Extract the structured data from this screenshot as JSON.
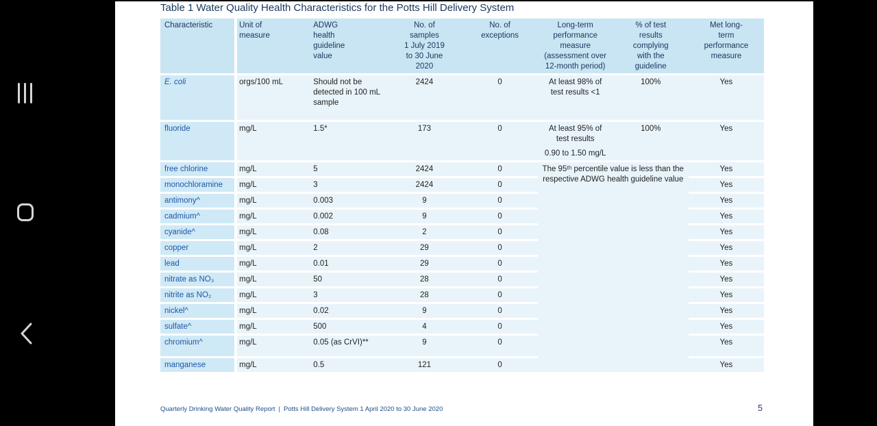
{
  "nav": {
    "recents_icon": "recent-apps",
    "home_icon": "home",
    "back_icon": "back"
  },
  "doc": {
    "title": "Table 1 Water Quality Health Characteristics for the Potts Hill Delivery System",
    "footer_left": "Quarterly Drinking Water Quality Report",
    "footer_separator": "|",
    "footer_right": "Potts Hill Delivery System 1 April 2020 to 30 June 2020",
    "page_number": "5"
  },
  "colors": {
    "header_bg": "#c9e5f3",
    "characteristic_bg": "#cfe9f6",
    "data_bg": "#e9f4fa",
    "header_text": "#17365d",
    "characteristic_text": "#2057a7",
    "data_text": "#1f1f1f",
    "nav_icon": "#d6d6d6"
  },
  "table": {
    "headers": [
      {
        "label": "Characteristic"
      },
      {
        "label": "Unit of measure"
      },
      {
        "label": "ADWG health guideline value"
      },
      {
        "label": "No. of samples",
        "sub": "1 July 2019 to 30 June 2020"
      },
      {
        "label": "No. of exceptions"
      },
      {
        "label": "Long-term performance measure (assessment over 12-month period)"
      },
      {
        "label": "% of test results complying with the guideline"
      },
      {
        "label": "Met long-term performance measure"
      }
    ],
    "merged": {
      "note": "The 95ᵗʰ percentile value is less than the respective ADWG health guideline value",
      "span_rows": 13
    },
    "rows": [
      {
        "characteristic": "E. coli",
        "italic": true,
        "unit": "orgs/100 mL",
        "guideline": "Should not be detected in 100 mL sample",
        "samples": "2424",
        "exceptions": "0",
        "longterm": [
          "At least 98% of test results <1"
        ],
        "complying": "100%",
        "met": "Yes",
        "variant": "tall"
      },
      {
        "characteristic": "fluoride",
        "unit": "mg/L",
        "guideline": "1.5*",
        "samples": "173",
        "exceptions": "0",
        "longterm": [
          "At least 95% of test results",
          "0.90 to 1.50 mg/L"
        ],
        "complying": "100%",
        "met": "Yes",
        "variant": "med"
      },
      {
        "characteristic": "free chlorine",
        "unit": "mg/L",
        "guideline": "5",
        "samples": "2424",
        "exceptions": "0",
        "met": "Yes",
        "merged_start": true,
        "variant": "reg"
      },
      {
        "characteristic": "monochloramine",
        "unit": "mg/L",
        "guideline": "3",
        "samples": "2424",
        "exceptions": "0",
        "met": "Yes",
        "variant": "reg"
      },
      {
        "characteristic": "antimony^",
        "unit": "mg/L",
        "guideline": "0.003",
        "samples": "9",
        "exceptions": "0",
        "met": "Yes",
        "variant": "reg"
      },
      {
        "characteristic": "cadmium^",
        "unit": "mg/L",
        "guideline": "0.002",
        "samples": "9",
        "exceptions": "0",
        "met": "Yes",
        "variant": "reg"
      },
      {
        "characteristic": "cyanide^",
        "unit": "mg/L",
        "guideline": "0.08",
        "samples": "2",
        "exceptions": "0",
        "met": "Yes",
        "variant": "reg"
      },
      {
        "characteristic": "copper",
        "unit": "mg/L",
        "guideline": "2",
        "samples": "29",
        "exceptions": "0",
        "met": "Yes",
        "variant": "reg"
      },
      {
        "characteristic": "lead",
        "unit": "mg/L",
        "guideline": "0.01",
        "samples": "29",
        "exceptions": "0",
        "met": "Yes",
        "variant": "reg"
      },
      {
        "characteristic": "nitrate as NO₃",
        "unit": "mg/L",
        "guideline": "50",
        "samples": "28",
        "exceptions": "0",
        "met": "Yes",
        "variant": "reg"
      },
      {
        "characteristic": "nitrite as NO₂",
        "unit": "mg/L",
        "guideline": "3",
        "samples": "28",
        "exceptions": "0",
        "met": "Yes",
        "variant": "reg"
      },
      {
        "characteristic": "nickel^",
        "unit": "mg/L",
        "guideline": "0.02",
        "samples": "9",
        "exceptions": "0",
        "met": "Yes",
        "variant": "reg"
      },
      {
        "characteristic": "sulfate^",
        "unit": "mg/L",
        "guideline": "500",
        "samples": "4",
        "exceptions": "0",
        "met": "Yes",
        "variant": "reg"
      },
      {
        "characteristic": "chromium^",
        "unit": "mg/L",
        "guideline": "0.05 (as CrVI)**",
        "samples": "9",
        "exceptions": "0",
        "met": "Yes",
        "variant": "x2"
      },
      {
        "characteristic": "manganese",
        "unit": "mg/L",
        "guideline": "0.5",
        "samples": "121",
        "exceptions": "0",
        "met": "Yes",
        "variant": "reg"
      }
    ]
  }
}
